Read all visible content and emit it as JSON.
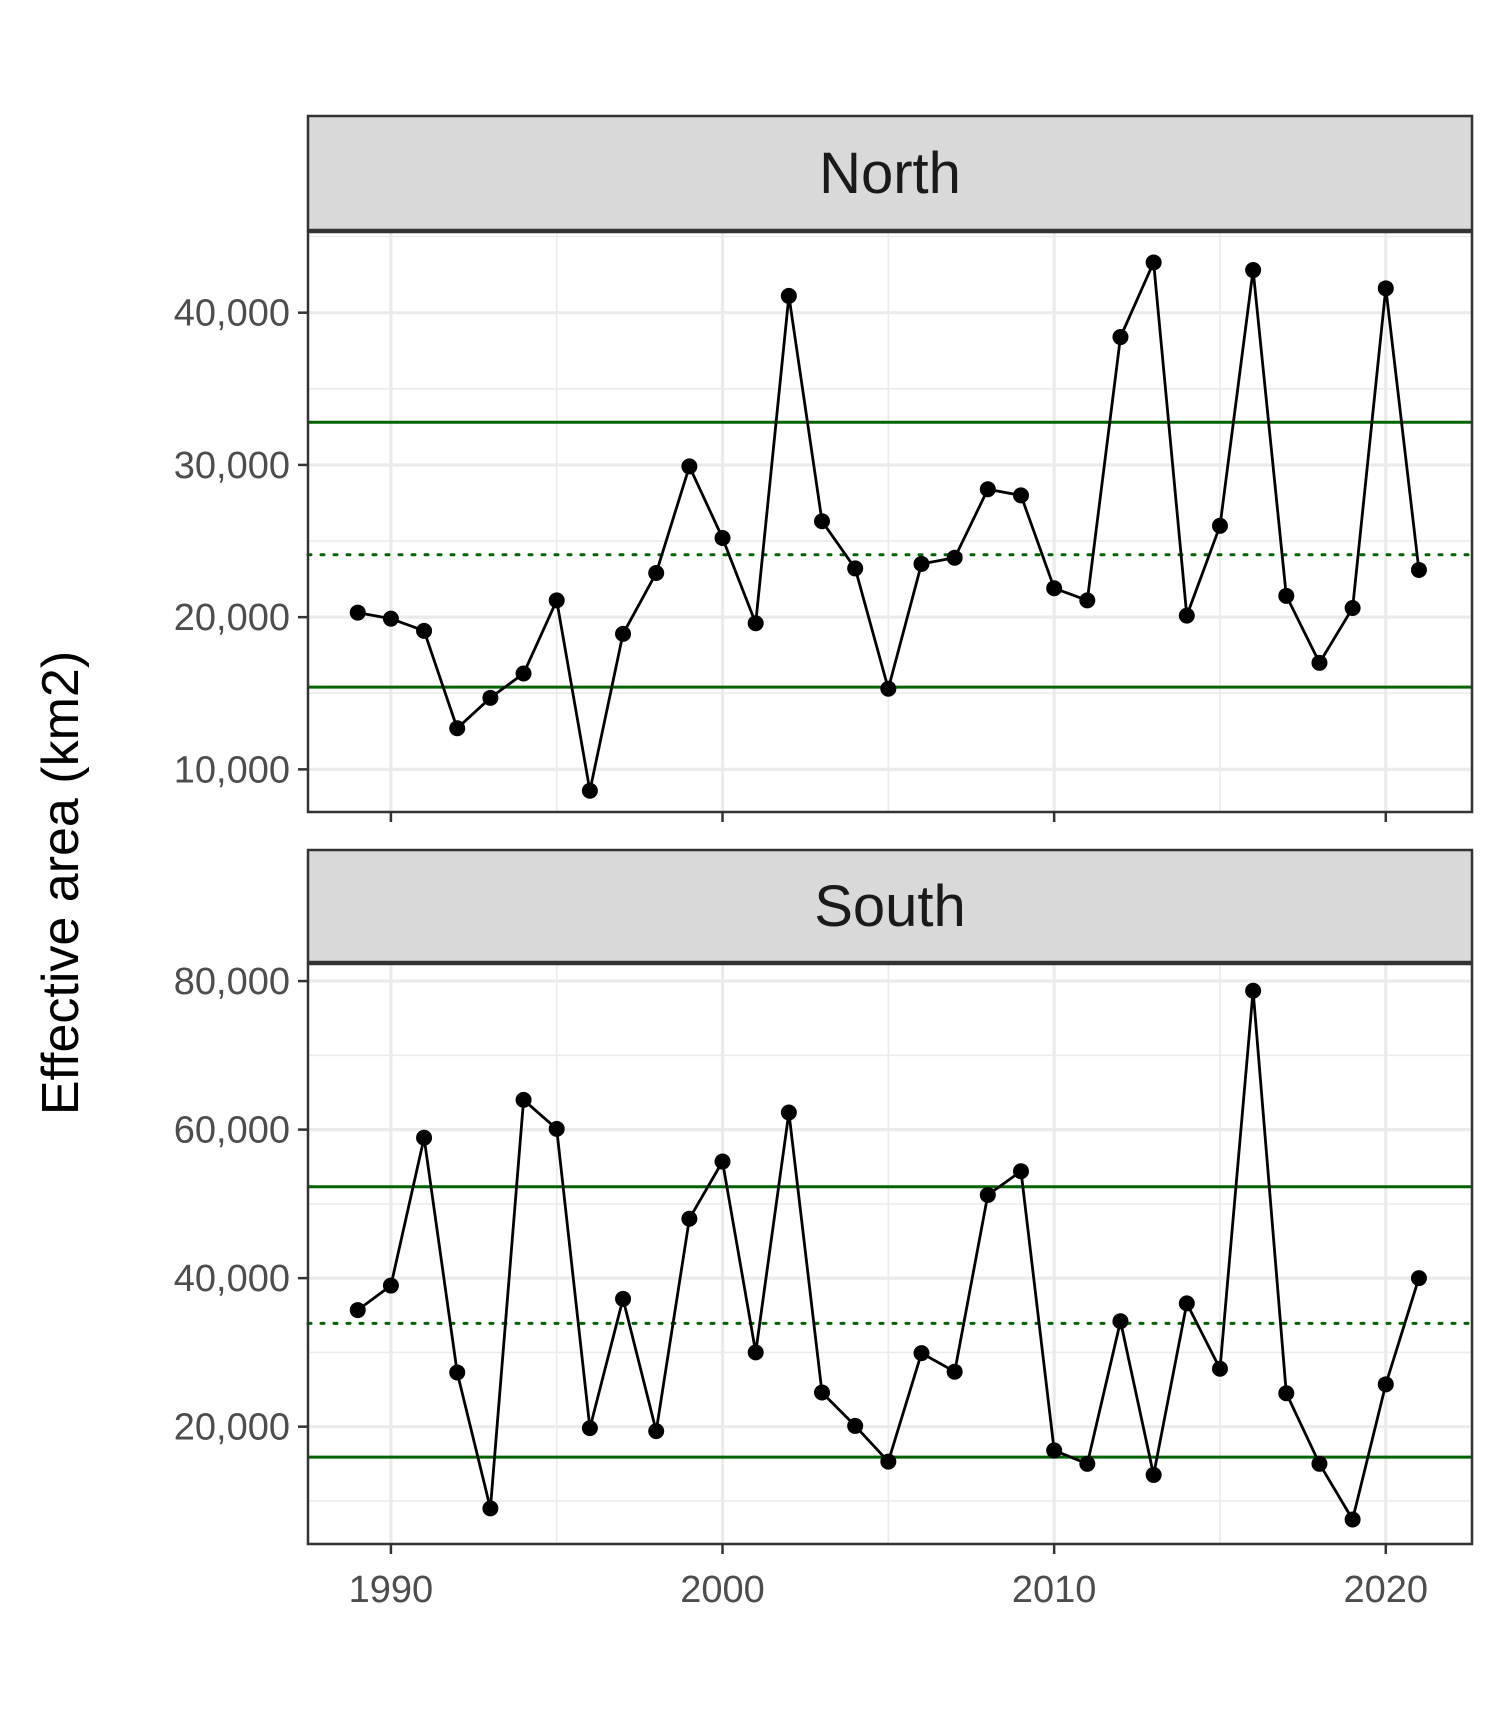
{
  "colors": {
    "band": "#006400",
    "series": "#000000",
    "strip_fill": "#d9d9d9",
    "grid": "#ebebeb",
    "border": "#333333"
  },
  "chart_data": {
    "type": "line",
    "facet_by": "region",
    "grid": true,
    "x": [
      1989,
      1990,
      1991,
      1992,
      1993,
      1994,
      1995,
      1996,
      1997,
      1998,
      1999,
      2000,
      2001,
      2002,
      2003,
      2004,
      2005,
      2006,
      2007,
      2008,
      2009,
      2010,
      2011,
      2012,
      2013,
      2014,
      2015,
      2016,
      2017,
      2018,
      2019,
      2020,
      2021
    ],
    "xlim": [
      1987.5,
      2022.6
    ],
    "xticks": [
      1990,
      2000,
      2010,
      2020
    ],
    "xtick_labels": [
      "1990",
      "2000",
      "2010",
      "2020"
    ],
    "ylabel": "Effective area (km2)",
    "panels": [
      {
        "name": "North",
        "ylim": [
          7200,
          45300
        ],
        "yticks": [
          10000,
          20000,
          30000,
          40000
        ],
        "ytick_labels": [
          "10,000",
          "20,000",
          "30,000",
          "40,000"
        ],
        "values": [
          20300,
          19900,
          19100,
          12700,
          14700,
          16300,
          21100,
          8600,
          18900,
          22900,
          29900,
          25200,
          19600,
          41100,
          26300,
          23200,
          15300,
          23500,
          23900,
          28400,
          28000,
          21900,
          21100,
          38400,
          43300,
          20100,
          26000,
          42800,
          21400,
          17000,
          20600,
          41600,
          23100
        ],
        "mean": 24100,
        "band": [
          15400,
          32800
        ]
      },
      {
        "name": "South",
        "ylim": [
          4200,
          82300
        ],
        "yticks": [
          20000,
          40000,
          60000,
          80000
        ],
        "ytick_labels": [
          "20,000",
          "40,000",
          "60,000",
          "80,000"
        ],
        "values": [
          35700,
          39000,
          58900,
          27300,
          9000,
          64000,
          60100,
          19800,
          37200,
          19400,
          48000,
          55700,
          30000,
          62300,
          24600,
          20100,
          15300,
          29900,
          27400,
          51200,
          54400,
          16800,
          15000,
          34200,
          13500,
          36600,
          27800,
          78700,
          24500,
          15000,
          7500,
          25700,
          40000
        ],
        "mean": 33900,
        "band": [
          15900,
          52300
        ]
      }
    ]
  }
}
